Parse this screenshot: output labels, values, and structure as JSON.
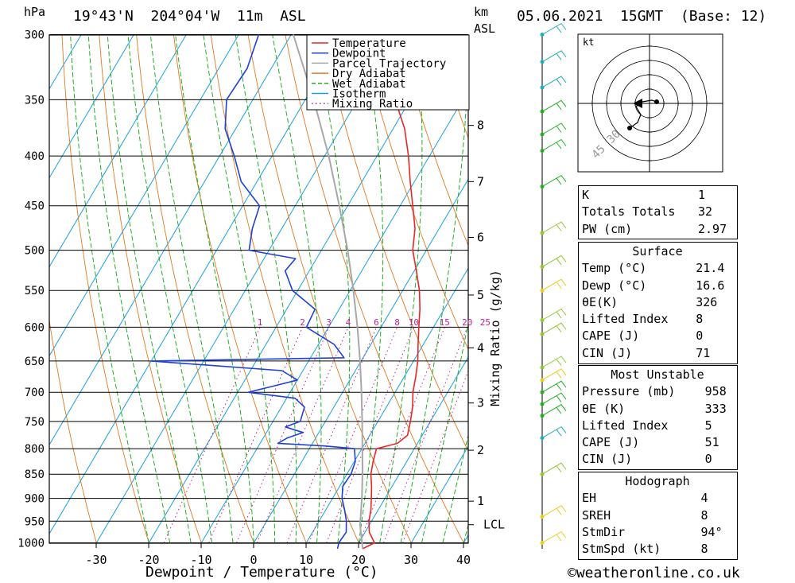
{
  "header": {
    "hpa_label": "hPa",
    "location": "19°43'N  204°04'W  11m  ASL",
    "km_label": "km",
    "asl_label": "ASL",
    "datetime": "05.06.2021  15GMT  (Base: 12)"
  },
  "footer": {
    "xaxis_title": "Dewpoint / Temperature (°C)",
    "copyright": "©weatheronline.co.uk"
  },
  "colors": {
    "temperature": "#e8262a",
    "dewpoint": "#2040d8",
    "parcel": "#a8a8a8",
    "dry_adiabat": "#e07a20",
    "wet_adiabat": "#20b020",
    "isotherm": "#1aa0e0",
    "mixing_ratio": "#c0209a"
  },
  "chart_data": {
    "type": "line",
    "title": "19°43'N  204°04'W  11m  ASL",
    "xlabel": "Dewpoint / Temperature (°C)",
    "ylabel": "hPa",
    "right_axis_label": "Mixing Ratio (g/kg)",
    "x_ticks": [
      -30,
      -20,
      -10,
      0,
      10,
      20,
      30,
      40
    ],
    "pressure_ticks": [
      300,
      350,
      400,
      450,
      500,
      550,
      600,
      650,
      700,
      750,
      800,
      850,
      900,
      950,
      1000
    ],
    "height_ticks_km": [
      {
        "label": "8",
        "p": 372
      },
      {
        "label": "7",
        "p": 425
      },
      {
        "label": "6",
        "p": 485
      },
      {
        "label": "5",
        "p": 556
      },
      {
        "label": "4",
        "p": 630
      },
      {
        "label": "3",
        "p": 718
      },
      {
        "label": "2",
        "p": 803
      },
      {
        "label": "1",
        "p": 906
      },
      {
        "label": "LCL",
        "p": 958
      }
    ],
    "mixing_ratio_labels": [
      "1",
      "2",
      "3",
      "4",
      "6",
      "8",
      "10",
      "15",
      "20",
      "25"
    ],
    "legend": [
      "Temperature",
      "Dewpoint",
      "Parcel Trajectory",
      "Dry Adiabat",
      "Wet Adiabat",
      "Isotherm",
      "Mixing Ratio"
    ],
    "series": [
      {
        "name": "Temperature",
        "points": [
          [
            1014,
            21.4
          ],
          [
            1000,
            23.0
          ],
          [
            975,
            20.8
          ],
          [
            950,
            19.5
          ],
          [
            925,
            18.6
          ],
          [
            900,
            17.4
          ],
          [
            875,
            16.1
          ],
          [
            850,
            14.6
          ],
          [
            825,
            13.6
          ],
          [
            800,
            12.8
          ],
          [
            790,
            16.2
          ],
          [
            775,
            17.2
          ],
          [
            750,
            16.2
          ],
          [
            725,
            15.0
          ],
          [
            700,
            13.4
          ],
          [
            675,
            12.2
          ],
          [
            650,
            10.8
          ],
          [
            625,
            9.0
          ],
          [
            600,
            7.2
          ],
          [
            575,
            5.4
          ],
          [
            550,
            3.2
          ],
          [
            525,
            0.4
          ],
          [
            500,
            -2.6
          ],
          [
            475,
            -4.6
          ],
          [
            450,
            -7.6
          ],
          [
            425,
            -10.8
          ],
          [
            400,
            -14.0
          ],
          [
            375,
            -17.8
          ],
          [
            360,
            -20.8
          ],
          [
            350,
            -22.6
          ],
          [
            325,
            -27.8
          ],
          [
            300,
            -32.8
          ]
        ]
      },
      {
        "name": "Dewpoint",
        "points": [
          [
            1014,
            16.6
          ],
          [
            1000,
            16.2
          ],
          [
            975,
            16.4
          ],
          [
            950,
            15.2
          ],
          [
            925,
            13.6
          ],
          [
            900,
            11.8
          ],
          [
            875,
            10.6
          ],
          [
            850,
            10.8
          ],
          [
            825,
            10.2
          ],
          [
            800,
            8.6
          ],
          [
            795,
            2.6
          ],
          [
            790,
            -6.6
          ],
          [
            780,
            -5.4
          ],
          [
            770,
            -3.0
          ],
          [
            760,
            -7.0
          ],
          [
            750,
            -4.8
          ],
          [
            725,
            -5.6
          ],
          [
            710,
            -8.4
          ],
          [
            700,
            -18.0
          ],
          [
            690,
            -14.0
          ],
          [
            680,
            -10.0
          ],
          [
            665,
            -14.0
          ],
          [
            650,
            -40.0
          ],
          [
            645,
            -3.6
          ],
          [
            625,
            -7.0
          ],
          [
            600,
            -14.2
          ],
          [
            575,
            -14.6
          ],
          [
            550,
            -21.0
          ],
          [
            525,
            -24.6
          ],
          [
            510,
            -24.0
          ],
          [
            500,
            -33.8
          ],
          [
            475,
            -35.6
          ],
          [
            450,
            -36.8
          ],
          [
            425,
            -43.0
          ],
          [
            400,
            -47.2
          ],
          [
            375,
            -52.0
          ],
          [
            350,
            -55.0
          ],
          [
            325,
            -54.6
          ],
          [
            300,
            -56.2
          ]
        ]
      },
      {
        "name": "Parcel Trajectory",
        "points": [
          [
            1014,
            21.4
          ],
          [
            958,
            18.2
          ],
          [
            900,
            15.6
          ],
          [
            850,
            13.0
          ],
          [
            800,
            10.1
          ],
          [
            750,
            7.0
          ],
          [
            700,
            3.6
          ],
          [
            650,
            -0.2
          ],
          [
            600,
            -4.5
          ],
          [
            550,
            -9.4
          ],
          [
            500,
            -15.0
          ],
          [
            450,
            -21.6
          ],
          [
            400,
            -29.2
          ],
          [
            350,
            -38.4
          ],
          [
            300,
            -49.6
          ]
        ]
      }
    ],
    "indices": {
      "general": [
        {
          "label": "K",
          "value": "1"
        },
        {
          "label": "Totals Totals",
          "value": "32"
        },
        {
          "label": "PW (cm)",
          "value": "2.97"
        }
      ],
      "surface_title": "Surface",
      "surface": [
        {
          "label": "Temp (°C)",
          "value": "21.4"
        },
        {
          "label": "Dewp (°C)",
          "value": "16.6"
        },
        {
          "label": "θE(K)",
          "value": "326"
        },
        {
          "label": "Lifted Index",
          "value": "8"
        },
        {
          "label": "CAPE (J)",
          "value": "0"
        },
        {
          "label": "CIN (J)",
          "value": "71"
        }
      ],
      "most_unstable_title": "Most Unstable",
      "most_unstable": [
        {
          "label": "Pressure (mb)",
          "value": "958"
        },
        {
          "label": "θE (K)",
          "value": "333"
        },
        {
          "label": "Lifted Index",
          "value": "5"
        },
        {
          "label": "CAPE (J)",
          "value": "51"
        },
        {
          "label": "CIN (J)",
          "value": "0"
        }
      ],
      "hodograph_title": "Hodograph",
      "hodograph": [
        {
          "label": "EH",
          "value": "4"
        },
        {
          "label": "SREH",
          "value": "8"
        },
        {
          "label": "StmDir",
          "value": "94°"
        },
        {
          "label": "StmSpd (kt)",
          "value": "8"
        }
      ]
    },
    "hodograph_plot": {
      "unit_label": "kt",
      "ring_labels": [
        "45",
        "30"
      ]
    },
    "wind_barbs": [
      {
        "p": 300,
        "color": "#20b0b0"
      },
      {
        "p": 320,
        "color": "#20b0b0"
      },
      {
        "p": 340,
        "color": "#20b0b0"
      },
      {
        "p": 360,
        "color": "#20b020"
      },
      {
        "p": 380,
        "color": "#20b020"
      },
      {
        "p": 395,
        "color": "#20b020"
      },
      {
        "p": 430,
        "color": "#20b020"
      },
      {
        "p": 480,
        "color": "#90c830"
      },
      {
        "p": 520,
        "color": "#90c830"
      },
      {
        "p": 550,
        "color": "#e8d020"
      },
      {
        "p": 590,
        "color": "#90c830"
      },
      {
        "p": 610,
        "color": "#90c830"
      },
      {
        "p": 660,
        "color": "#90c830"
      },
      {
        "p": 680,
        "color": "#e8d020"
      },
      {
        "p": 700,
        "color": "#20b020"
      },
      {
        "p": 720,
        "color": "#20b020"
      },
      {
        "p": 740,
        "color": "#20b020"
      },
      {
        "p": 780,
        "color": "#20b0b0"
      },
      {
        "p": 850,
        "color": "#90c830"
      },
      {
        "p": 940,
        "color": "#e8d020"
      },
      {
        "p": 1000,
        "color": "#e8d020"
      }
    ]
  }
}
